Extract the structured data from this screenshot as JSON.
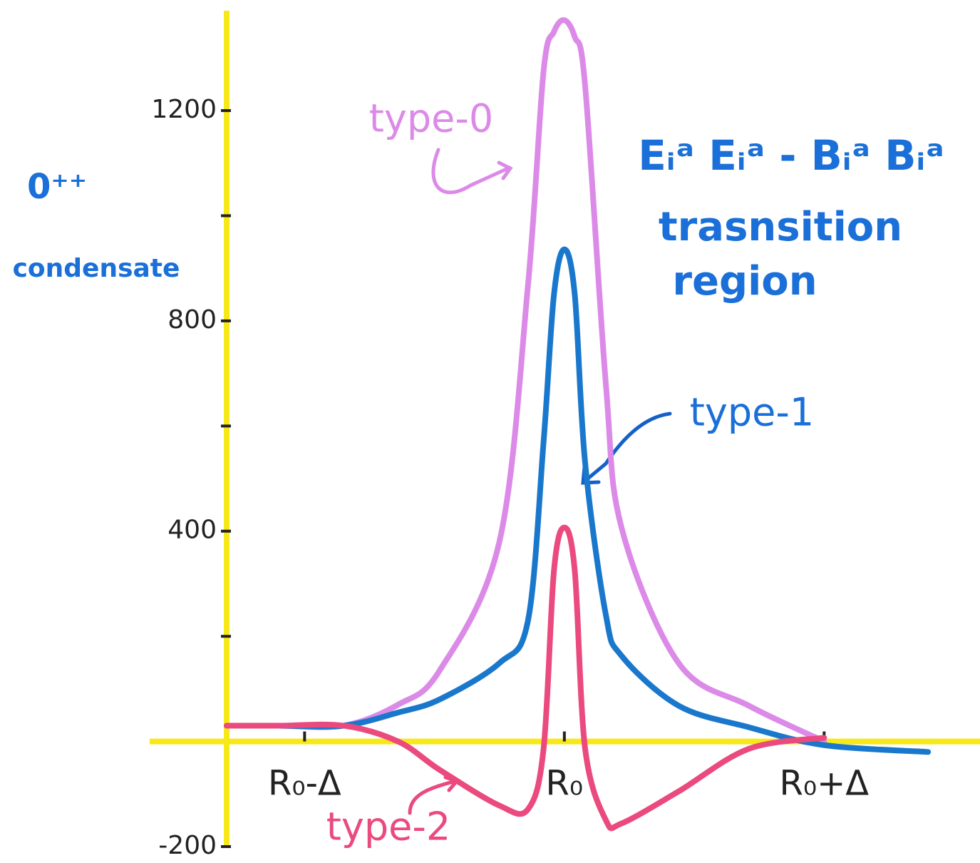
{
  "chart_data": {
    "type": "line",
    "y_label": [
      "0⁺⁺",
      "condensate"
    ],
    "annotation": [
      "Eᵢᵃ Eᵢᵃ - Bᵢᵃ Bᵢᵃ",
      "trasnsition",
      "region"
    ],
    "x": [
      -1.3,
      -1.1,
      -0.85,
      -0.64,
      -0.48,
      -0.25,
      -0.14,
      -0.08,
      -0.04,
      0,
      0.04,
      0.08,
      0.16,
      0.22,
      0.44,
      0.71,
      1.0,
      1.4
    ],
    "series": [
      {
        "name": "type-0",
        "color": "#dc8ae8",
        "values": [
          30,
          30,
          30,
          70,
          135,
          380,
          868,
          1275,
          1350,
          1372,
          1340,
          1247,
          678,
          407,
          149,
          68,
          0,
          null
        ]
      },
      {
        "name": "type-1",
        "color": "#1a78cc",
        "values": [
          30,
          30,
          30,
          55,
          80,
          149,
          230,
          570,
          850,
          936,
          850,
          530,
          240,
          163,
          68,
          27,
          -7,
          -20
        ]
      },
      {
        "name": "type-2",
        "color": "#ea4a7e",
        "values": [
          30,
          30,
          30,
          0,
          -54,
          -122,
          -129,
          -14,
          325,
          407,
          325,
          -14,
          -150,
          -156,
          -95,
          -14,
          7,
          null
        ]
      }
    ],
    "xlim": [
      -1.3,
      1.6
    ],
    "xticks": [
      {
        "value": -1,
        "label": "R₀-Δ"
      },
      {
        "value": 0,
        "label": "R₀"
      },
      {
        "value": 1,
        "label": "R₀+Δ"
      }
    ],
    "ylim": [
      -200,
      1390
    ],
    "yticks": [
      -200,
      400,
      800,
      1200
    ],
    "minor_yticks": [
      200,
      600,
      1000
    ],
    "axis_color": "#f7e81a"
  }
}
